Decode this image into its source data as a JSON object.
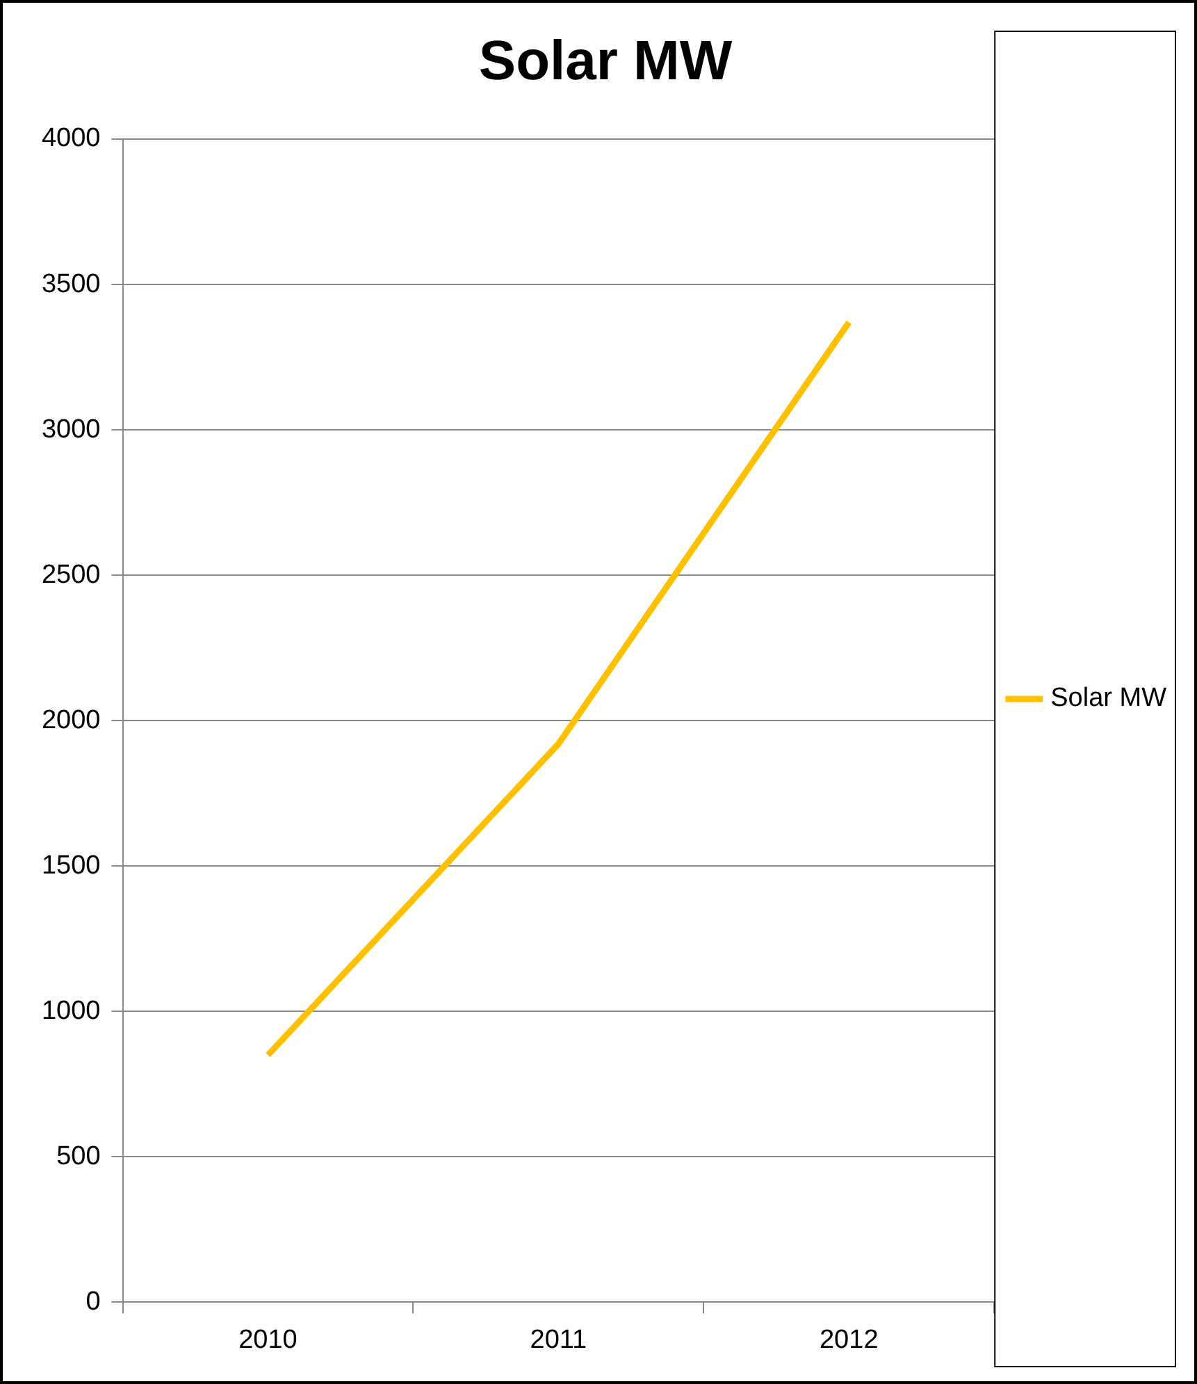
{
  "chart_data": {
    "type": "line",
    "title": "Solar MW",
    "categories": [
      "2010",
      "2011",
      "2012"
    ],
    "series": [
      {
        "name": "Solar MW",
        "color": "#ffc000",
        "values": [
          850,
          1920,
          3370
        ]
      }
    ],
    "ylim": [
      0,
      4000
    ],
    "yticks": [
      0,
      500,
      1000,
      1500,
      2000,
      2500,
      3000,
      3500,
      4000
    ],
    "grid": "y",
    "legend": "right",
    "marker": "none",
    "line_style": "solid"
  }
}
